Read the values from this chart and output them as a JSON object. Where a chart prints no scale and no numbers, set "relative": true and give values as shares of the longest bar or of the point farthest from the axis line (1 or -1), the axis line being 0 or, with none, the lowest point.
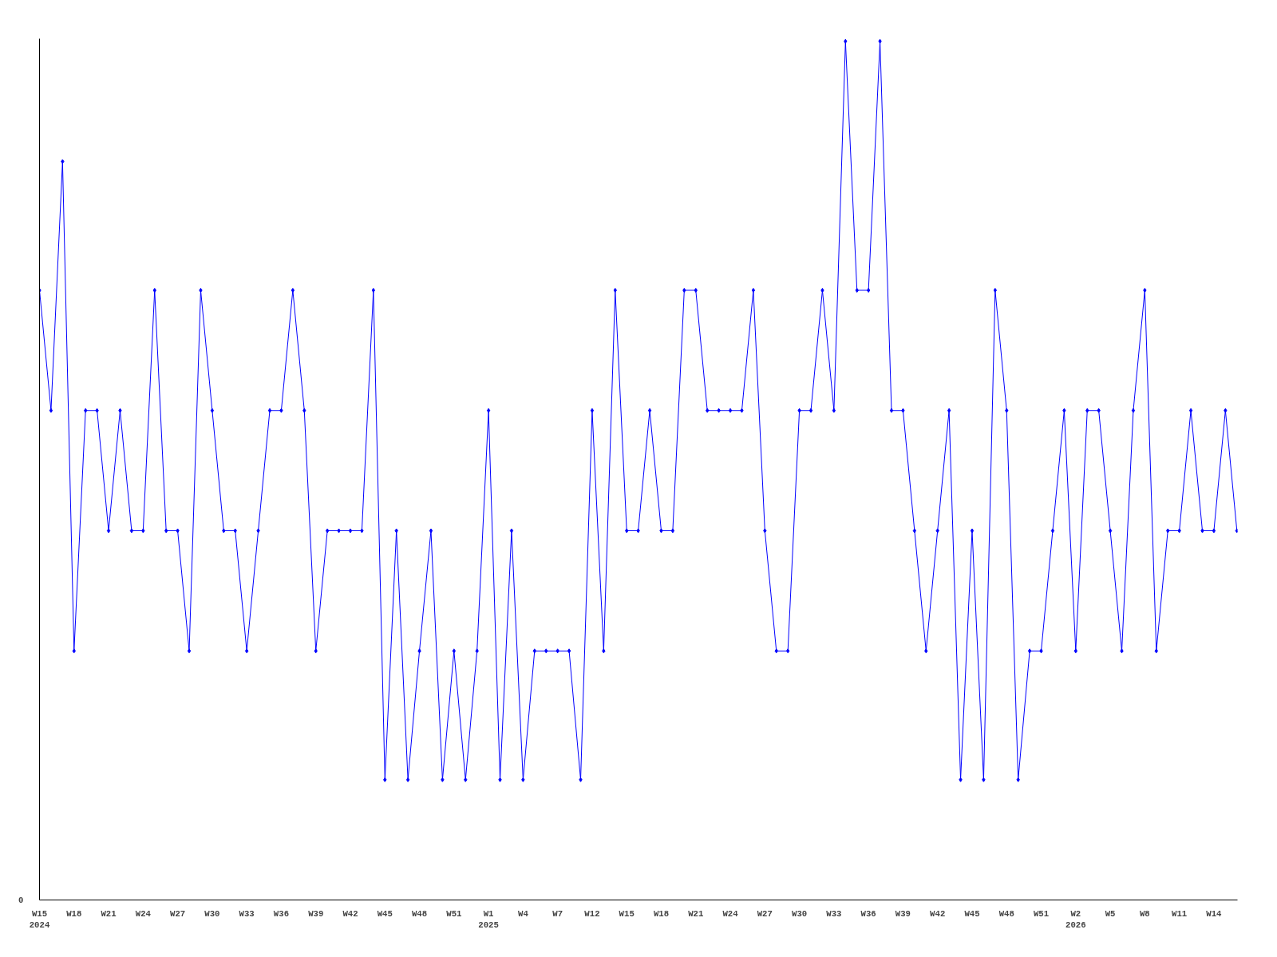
{
  "chart_data": {
    "type": "line",
    "relative": true,
    "marker": "diamond",
    "line_style": "solid",
    "grid": false,
    "annotations": [
      "0"
    ],
    "categories": [
      "W15\n2024",
      null,
      null,
      "W18",
      null,
      null,
      "W21",
      null,
      null,
      "W24",
      null,
      null,
      "W27",
      null,
      null,
      "W30",
      null,
      null,
      "W33",
      null,
      null,
      "W36",
      null,
      null,
      "W39",
      null,
      null,
      "W42",
      null,
      null,
      "W45",
      null,
      null,
      "W48",
      null,
      null,
      "W51",
      null,
      null,
      "W1\n2025",
      null,
      null,
      "W4",
      null,
      null,
      "W7",
      null,
      null,
      "W12",
      null,
      null,
      "W15",
      null,
      null,
      "W18",
      null,
      null,
      "W21",
      null,
      null,
      "W24",
      null,
      null,
      "W27",
      null,
      null,
      "W30",
      null,
      null,
      "W33",
      null,
      null,
      "W36",
      null,
      null,
      "W39",
      null,
      null,
      "W42",
      null,
      null,
      "W45",
      null,
      null,
      "W48",
      null,
      null,
      "W51",
      null,
      null,
      "W2\n2026",
      null,
      null,
      "W5",
      null,
      null,
      "W8",
      null,
      null,
      "W11",
      null,
      null,
      "W14",
      null,
      null
    ],
    "series": [
      {
        "color": "#0000ff",
        "values": [
          0.71,
          0.57,
          0.86,
          0.29,
          0.57,
          0.57,
          0.43,
          0.57,
          0.43,
          0.43,
          0.71,
          0.43,
          0.43,
          0.29,
          0.71,
          0.57,
          0.43,
          0.43,
          0.29,
          0.43,
          0.57,
          0.57,
          0.71,
          0.57,
          0.29,
          0.43,
          0.43,
          0.43,
          0.43,
          0.71,
          0.14,
          0.43,
          0.14,
          0.29,
          0.43,
          0.14,
          0.29,
          0.14,
          0.29,
          0.57,
          0.14,
          0.43,
          0.14,
          0.29,
          0.29,
          0.29,
          0.29,
          0.14,
          0.57,
          0.29,
          0.71,
          0.43,
          0.43,
          0.57,
          0.43,
          0.43,
          0.71,
          0.71,
          0.57,
          0.57,
          0.57,
          0.57,
          0.71,
          0.43,
          0.29,
          0.29,
          0.57,
          0.57,
          0.71,
          0.57,
          1,
          0.71,
          0.71,
          1,
          0.57,
          0.57,
          0.43,
          0.29,
          0.43,
          0.57,
          0.14,
          0.43,
          0.14,
          0.71,
          0.57,
          0.14,
          0.29,
          0.29,
          0.43,
          0.57,
          0.29,
          0.57,
          0.57,
          0.43,
          0.29,
          0.57,
          0.71,
          0.29,
          0.43,
          0.43,
          0.57,
          0.43,
          0.43,
          0.57,
          0.43
        ]
      }
    ]
  }
}
